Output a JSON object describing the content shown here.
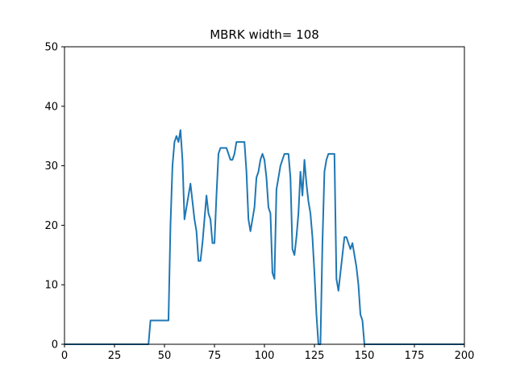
{
  "chart_data": {
    "type": "line",
    "title": "MBRK width= 108",
    "xlabel": "",
    "ylabel": "",
    "xlim": [
      0,
      200
    ],
    "ylim": [
      0,
      50
    ],
    "xticks": [
      0,
      25,
      50,
      75,
      100,
      125,
      150,
      175,
      200
    ],
    "yticks": [
      0,
      10,
      20,
      30,
      40,
      50
    ],
    "grid": false,
    "series_color": "#1f77b4",
    "x": [
      0,
      5,
      10,
      15,
      20,
      25,
      30,
      35,
      40,
      42,
      43,
      45,
      48,
      50,
      52,
      53,
      54,
      55,
      56,
      57,
      58,
      59,
      60,
      61,
      62,
      63,
      64,
      65,
      66,
      67,
      68,
      69,
      70,
      71,
      72,
      73,
      74,
      75,
      76,
      77,
      78,
      79,
      80,
      81,
      82,
      83,
      84,
      85,
      86,
      87,
      88,
      89,
      90,
      91,
      92,
      93,
      94,
      95,
      96,
      97,
      98,
      99,
      100,
      101,
      102,
      103,
      104,
      105,
      106,
      107,
      108,
      109,
      110,
      111,
      112,
      113,
      114,
      115,
      116,
      117,
      118,
      119,
      120,
      121,
      122,
      123,
      124,
      125,
      126,
      127,
      128,
      129,
      130,
      131,
      132,
      133,
      134,
      135,
      136,
      137,
      138,
      139,
      140,
      141,
      142,
      143,
      144,
      145,
      146,
      147,
      148,
      149,
      150,
      155,
      160,
      170,
      180,
      190,
      200
    ],
    "y": [
      0,
      0,
      0,
      0,
      0,
      0,
      0,
      0,
      0,
      0,
      4,
      4,
      4,
      4,
      4,
      20,
      30,
      34,
      35,
      34,
      36,
      31,
      21,
      23,
      25,
      27,
      24,
      21,
      19,
      14,
      14,
      17,
      21,
      25,
      22,
      21,
      17,
      17,
      25,
      32,
      33,
      33,
      33,
      33,
      32,
      31,
      31,
      32,
      34,
      34,
      34,
      34,
      34,
      29,
      21,
      19,
      21,
      23,
      28,
      29,
      31,
      32,
      31,
      28,
      23,
      22,
      12,
      11,
      26,
      28,
      30,
      31,
      32,
      32,
      32,
      28,
      16,
      15,
      18,
      22,
      29,
      25,
      31,
      27,
      24,
      22,
      18,
      12,
      5,
      0,
      0,
      17,
      29,
      31,
      32,
      32,
      32,
      32,
      11,
      9,
      12,
      15,
      18,
      18,
      17,
      16,
      17,
      15,
      13,
      10,
      5,
      4,
      0,
      0,
      0,
      0,
      0,
      0,
      0
    ]
  }
}
